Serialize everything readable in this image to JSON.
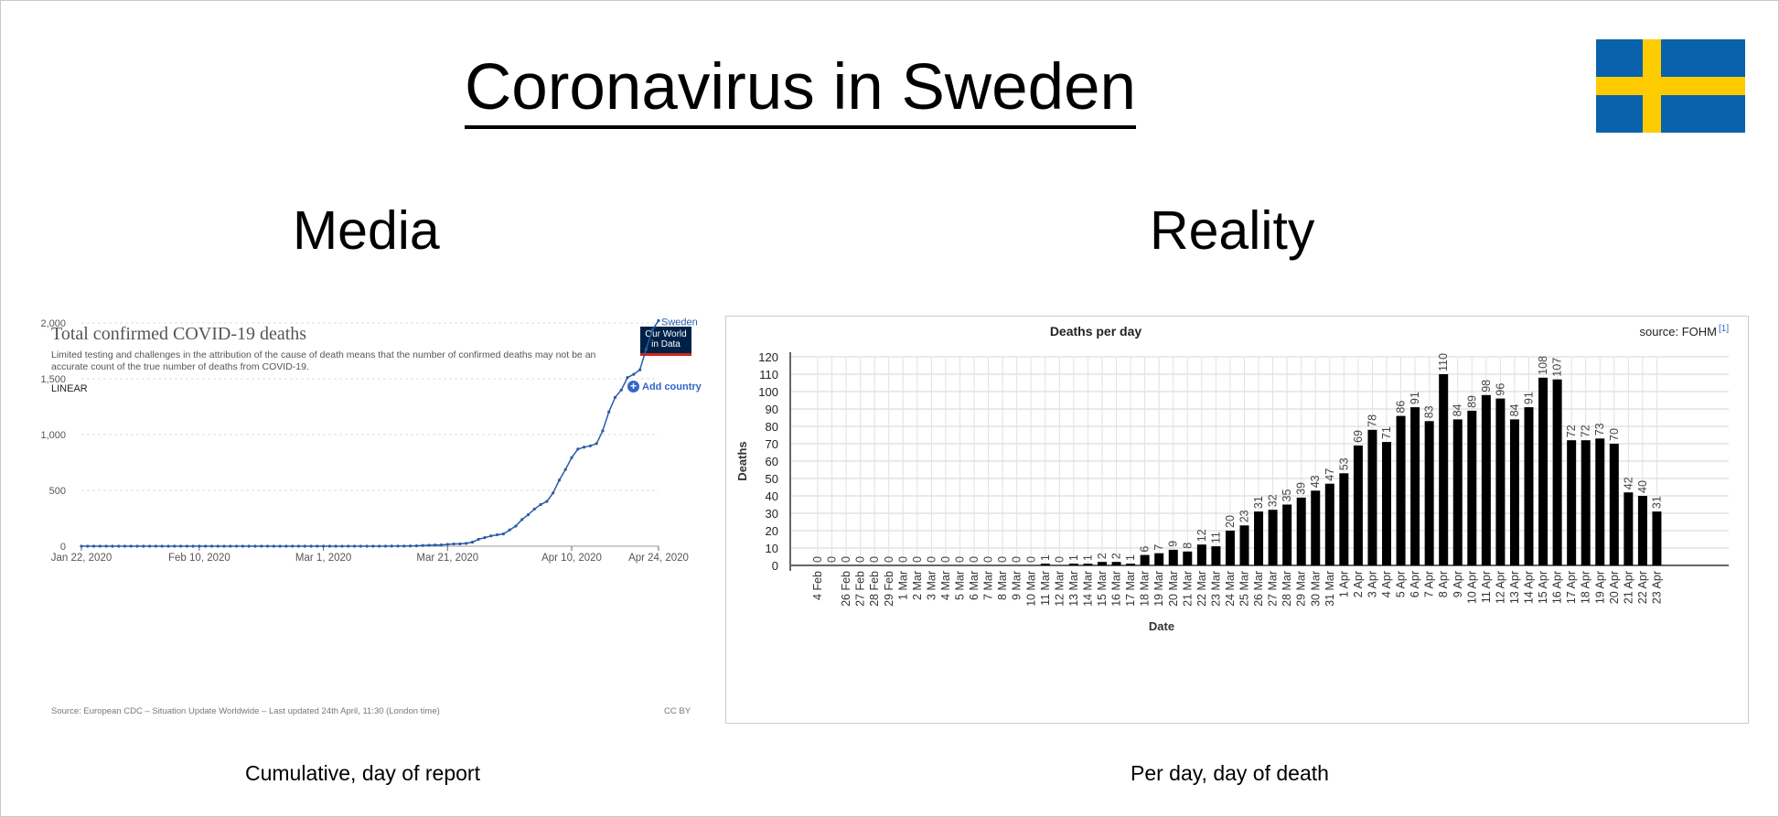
{
  "title": "Coronavirus in Sweden",
  "left": {
    "heading": "Media",
    "caption": "Cumulative, day of report",
    "chart_title": "Total confirmed COVID-19 deaths",
    "chart_subtitle": "Limited testing and challenges in the attribution of the cause of death means that the number of confirmed deaths may not be an accurate count of the true number of deaths from COVID-19.",
    "logo_line1": "Our World",
    "logo_line2": "in Data",
    "scale_label": "LINEAR",
    "add_country": "Add country",
    "series_label": "Sweden",
    "source": "Source: European CDC – Situation Update Worldwide – Last updated 24th April, 11:30 (London time)",
    "license": "CC BY"
  },
  "right": {
    "heading": "Reality",
    "caption": "Per day, day of death",
    "chart_title": "Deaths per day",
    "source_label": "source: FOHM",
    "source_ref": "[1]",
    "ylabel": "Deaths",
    "xlabel": "Date"
  },
  "colors": {
    "line": "#2a5ca8",
    "bar": "#000000",
    "flag_blue": "#0a62ac",
    "flag_yellow": "#fecb00"
  },
  "chart_data": [
    {
      "type": "line",
      "title": "Total confirmed COVID-19 deaths",
      "series": [
        {
          "name": "Sweden",
          "x": [
            "2020-01-22",
            "2020-01-23",
            "2020-01-24",
            "2020-01-25",
            "2020-01-26",
            "2020-01-27",
            "2020-01-28",
            "2020-01-29",
            "2020-01-30",
            "2020-01-31",
            "2020-02-01",
            "2020-02-02",
            "2020-02-03",
            "2020-02-04",
            "2020-02-05",
            "2020-02-06",
            "2020-02-07",
            "2020-02-08",
            "2020-02-09",
            "2020-02-10",
            "2020-02-11",
            "2020-02-12",
            "2020-02-13",
            "2020-02-14",
            "2020-02-15",
            "2020-02-16",
            "2020-02-17",
            "2020-02-18",
            "2020-02-19",
            "2020-02-20",
            "2020-02-21",
            "2020-02-22",
            "2020-02-23",
            "2020-02-24",
            "2020-02-25",
            "2020-02-26",
            "2020-02-27",
            "2020-02-28",
            "2020-02-29",
            "2020-03-01",
            "2020-03-02",
            "2020-03-03",
            "2020-03-04",
            "2020-03-05",
            "2020-03-06",
            "2020-03-07",
            "2020-03-08",
            "2020-03-09",
            "2020-03-10",
            "2020-03-11",
            "2020-03-12",
            "2020-03-13",
            "2020-03-14",
            "2020-03-15",
            "2020-03-16",
            "2020-03-17",
            "2020-03-18",
            "2020-03-19",
            "2020-03-20",
            "2020-03-21",
            "2020-03-22",
            "2020-03-23",
            "2020-03-24",
            "2020-03-25",
            "2020-03-26",
            "2020-03-27",
            "2020-03-28",
            "2020-03-29",
            "2020-03-30",
            "2020-03-31",
            "2020-04-01",
            "2020-04-02",
            "2020-04-03",
            "2020-04-04",
            "2020-04-05",
            "2020-04-06",
            "2020-04-07",
            "2020-04-08",
            "2020-04-09",
            "2020-04-10",
            "2020-04-11",
            "2020-04-12",
            "2020-04-13",
            "2020-04-14",
            "2020-04-15",
            "2020-04-16",
            "2020-04-17",
            "2020-04-18",
            "2020-04-19",
            "2020-04-20",
            "2020-04-21",
            "2020-04-22",
            "2020-04-23",
            "2020-04-24"
          ],
          "y": [
            0,
            0,
            0,
            0,
            0,
            0,
            0,
            0,
            0,
            0,
            0,
            0,
            0,
            0,
            0,
            0,
            0,
            0,
            0,
            0,
            0,
            0,
            0,
            0,
            0,
            0,
            0,
            0,
            0,
            0,
            0,
            0,
            0,
            0,
            0,
            0,
            0,
            0,
            0,
            0,
            0,
            0,
            0,
            0,
            0,
            0,
            0,
            0,
            0,
            0,
            1,
            1,
            1,
            2,
            3,
            6,
            8,
            10,
            11,
            16,
            20,
            21,
            25,
            36,
            62,
            77,
            92,
            102,
            110,
            146,
            180,
            239,
            282,
            333,
            373,
            401,
            477,
            591,
            687,
            793,
            870,
            887,
            899,
            919,
            1033,
            1203,
            1333,
            1400,
            1511,
            1540,
            1580,
            1765,
            1937,
            2021
          ]
        }
      ],
      "xticks": [
        "Jan 22, 2020",
        "Feb 10, 2020",
        "Mar 1, 2020",
        "Mar 21, 2020",
        "Apr 10, 2020",
        "Apr 24, 2020"
      ],
      "yticks": [
        "0",
        "500",
        "1,000",
        "1,500",
        "2,000"
      ],
      "ylim": [
        0,
        2000
      ]
    },
    {
      "type": "bar",
      "title": "Deaths per day",
      "xlabel": "Date",
      "ylabel": "Deaths",
      "ylim": [
        0,
        120
      ],
      "yticks": [
        0,
        10,
        20,
        30,
        40,
        50,
        60,
        70,
        80,
        90,
        100,
        110,
        120
      ],
      "categories": [
        "4 Feb",
        "",
        "26 Feb",
        "27 Feb",
        "28 Feb",
        "29 Feb",
        "1 Mar",
        "2 Mar",
        "3 Mar",
        "4 Mar",
        "5 Mar",
        "6 Mar",
        "7 Mar",
        "8 Mar",
        "9 Mar",
        "10 Mar",
        "11 Mar",
        "12 Mar",
        "13 Mar",
        "14 Mar",
        "15 Mar",
        "16 Mar",
        "17 Mar",
        "18 Mar",
        "19 Mar",
        "20 Mar",
        "21 Mar",
        "22 Mar",
        "23 Mar",
        "24 Mar",
        "25 Mar",
        "26 Mar",
        "27 Mar",
        "28 Mar",
        "29 Mar",
        "30 Mar",
        "31 Mar",
        "1 Apr",
        "2 Apr",
        "3 Apr",
        "4 Apr",
        "5 Apr",
        "6 Apr",
        "7 Apr",
        "8 Apr",
        "9 Apr",
        "10 Apr",
        "11 Apr",
        "12 Apr",
        "13 Apr",
        "14 Apr",
        "15 Apr",
        "16 Apr",
        "17 Apr",
        "18 Apr",
        "19 Apr",
        "20 Apr",
        "21 Apr",
        "22 Apr",
        "23 Apr"
      ],
      "values": [
        0,
        0,
        0,
        0,
        0,
        0,
        0,
        0,
        0,
        0,
        0,
        0,
        0,
        0,
        0,
        0,
        1,
        0,
        1,
        1,
        2,
        2,
        1,
        6,
        7,
        9,
        8,
        12,
        11,
        20,
        23,
        31,
        32,
        35,
        39,
        43,
        47,
        53,
        69,
        78,
        71,
        86,
        91,
        83,
        110,
        84,
        89,
        98,
        96,
        84,
        91,
        108,
        107,
        72,
        72,
        73,
        70,
        42,
        40,
        31
      ]
    }
  ]
}
